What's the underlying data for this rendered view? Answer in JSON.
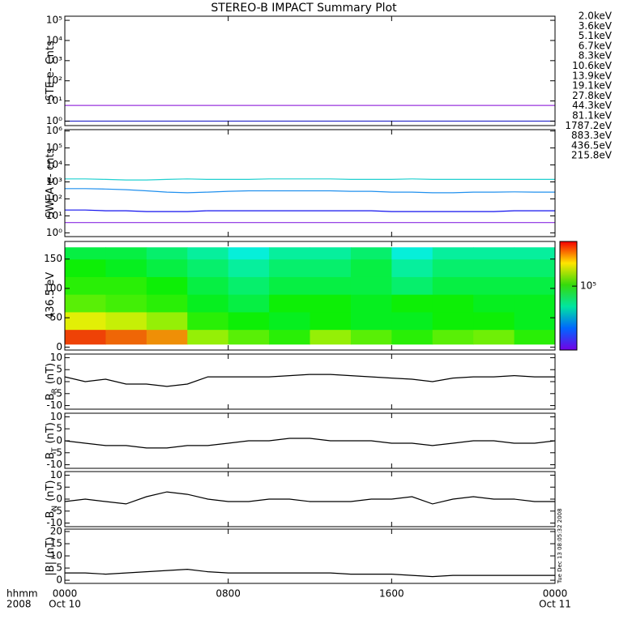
{
  "chart_data": [
    {
      "type": "line",
      "title": "STEREO-B IMPACT Summary Plot",
      "ylabel": [
        "STE e- Cnts"
      ],
      "log_y": true,
      "legend": true,
      "xlim": [
        0,
        24
      ],
      "ylim": [
        0.6,
        160000
      ],
      "yticks": [
        {
          "value": 1,
          "label": "10⁰"
        },
        {
          "value": 10,
          "label": "10¹"
        },
        {
          "value": 100,
          "label": "10²"
        },
        {
          "value": 1000,
          "label": "10³"
        },
        {
          "value": 10000,
          "label": "10⁴"
        },
        {
          "value": 100000,
          "label": "10⁵"
        }
      ],
      "x": [
        0,
        1,
        2,
        3,
        4,
        5,
        6,
        7,
        8,
        9,
        10,
        11,
        12,
        13,
        14,
        15,
        16,
        17,
        18,
        19,
        20,
        21,
        22,
        23,
        24
      ],
      "series": [
        {
          "name": "2.0keV",
          "color": "#9933dd",
          "values": [
            6,
            6,
            6,
            6,
            6,
            6,
            6,
            6,
            6,
            6,
            6,
            6,
            6,
            6,
            6,
            6,
            6,
            6,
            6,
            6,
            6,
            6,
            6,
            6,
            6
          ]
        },
        {
          "name": "3.6keV",
          "color": "#3333cc",
          "values": [
            1,
            1,
            1,
            1,
            1,
            1,
            1,
            1,
            1,
            1,
            1,
            1,
            1,
            1,
            1,
            1,
            1,
            1,
            1,
            1,
            1,
            1,
            1,
            1,
            1
          ]
        },
        {
          "name": "5.1keV",
          "color": "#2255ee",
          "values": [
            null,
            null,
            null,
            null,
            null,
            null,
            null,
            null,
            null,
            null,
            null,
            null,
            null,
            null,
            null,
            null,
            null,
            null,
            null,
            null,
            null,
            null,
            null,
            null,
            null
          ]
        },
        {
          "name": "6.7keV",
          "color": "#2a9fd8",
          "values": [
            null,
            null,
            null,
            null,
            null,
            null,
            null,
            null,
            null,
            null,
            null,
            null,
            null,
            null,
            null,
            null,
            null,
            null,
            null,
            null,
            null,
            null,
            null,
            null,
            null
          ]
        },
        {
          "name": "8.3keV",
          "color": "#22c8c8",
          "values": [
            null,
            null,
            null,
            null,
            null,
            null,
            null,
            null,
            null,
            null,
            null,
            null,
            null,
            null,
            null,
            null,
            null,
            null,
            null,
            null,
            null,
            null,
            null,
            null,
            null
          ]
        },
        {
          "name": "10.6keV",
          "color": "#22cc77",
          "values": [
            null,
            null,
            null,
            null,
            null,
            null,
            null,
            null,
            null,
            null,
            null,
            null,
            null,
            null,
            null,
            null,
            null,
            null,
            null,
            null,
            null,
            null,
            null,
            null,
            null
          ]
        },
        {
          "name": "13.9keV",
          "color": "#33cc11",
          "values": [
            null,
            null,
            null,
            null,
            null,
            null,
            null,
            null,
            null,
            null,
            null,
            null,
            null,
            null,
            null,
            null,
            null,
            null,
            null,
            null,
            null,
            null,
            null,
            null,
            null
          ]
        },
        {
          "name": "19.1keV",
          "color": "#aacc11",
          "values": [
            null,
            null,
            null,
            null,
            null,
            null,
            null,
            null,
            null,
            null,
            null,
            null,
            null,
            null,
            null,
            null,
            null,
            null,
            null,
            null,
            null,
            null,
            null,
            null,
            null
          ]
        },
        {
          "name": "27.8keV",
          "color": "#ffcc00",
          "values": [
            null,
            null,
            null,
            null,
            null,
            null,
            null,
            null,
            null,
            null,
            null,
            null,
            null,
            null,
            null,
            null,
            null,
            null,
            null,
            null,
            null,
            null,
            null,
            null,
            null
          ]
        },
        {
          "name": "44.3keV",
          "color": "#ff8800",
          "values": [
            null,
            null,
            null,
            null,
            null,
            null,
            null,
            null,
            null,
            null,
            null,
            null,
            null,
            null,
            null,
            null,
            null,
            null,
            null,
            null,
            null,
            null,
            null,
            null,
            null
          ]
        },
        {
          "name": "81.1keV",
          "color": "#dd2200",
          "values": [
            null,
            null,
            null,
            null,
            null,
            null,
            null,
            null,
            null,
            null,
            null,
            null,
            null,
            null,
            null,
            null,
            null,
            null,
            null,
            null,
            null,
            null,
            null,
            null,
            null
          ]
        }
      ]
    },
    {
      "type": "line",
      "ylabel": [
        "SWEA e- cnts"
      ],
      "log_y": true,
      "legend": true,
      "xlim": [
        0,
        24
      ],
      "ylim": [
        0.6,
        1200000
      ],
      "yticks": [
        {
          "value": 1,
          "label": "10⁰"
        },
        {
          "value": 10,
          "label": "10¹"
        },
        {
          "value": 100,
          "label": "10²"
        },
        {
          "value": 1000,
          "label": "10³"
        },
        {
          "value": 10000,
          "label": "10⁴"
        },
        {
          "value": 100000,
          "label": "10⁵"
        },
        {
          "value": 1000000,
          "label": "10⁶"
        }
      ],
      "x": [
        0,
        1,
        2,
        3,
        4,
        5,
        6,
        7,
        8,
        9,
        10,
        11,
        12,
        13,
        14,
        15,
        16,
        17,
        18,
        19,
        20,
        21,
        22,
        23,
        24
      ],
      "series": [
        {
          "name": "1787.2eV",
          "color": "#8a2be2",
          "values": [
            4,
            4,
            4,
            4,
            4,
            4,
            4,
            4,
            4,
            4,
            4,
            4,
            4,
            4,
            4,
            4,
            4,
            4,
            4,
            4,
            4,
            4,
            4,
            4,
            4
          ]
        },
        {
          "name": "883.3eV",
          "color": "#1010ee",
          "values": [
            22,
            22,
            20,
            20,
            18,
            18,
            18,
            20,
            20,
            20,
            20,
            20,
            20,
            20,
            20,
            20,
            18,
            18,
            18,
            18,
            18,
            18,
            20,
            20,
            20
          ]
        },
        {
          "name": "436.5eV",
          "color": "#2090ee",
          "values": [
            400,
            400,
            380,
            350,
            300,
            250,
            230,
            250,
            280,
            300,
            300,
            300,
            300,
            300,
            280,
            280,
            250,
            250,
            230,
            230,
            250,
            250,
            260,
            250,
            250
          ]
        },
        {
          "name": "215.8eV",
          "color": "#20d0d0",
          "values": [
            1500,
            1500,
            1400,
            1300,
            1300,
            1400,
            1500,
            1400,
            1400,
            1400,
            1500,
            1500,
            1500,
            1500,
            1400,
            1400,
            1400,
            1500,
            1400,
            1400,
            1400,
            1400,
            1400,
            1400,
            1400
          ]
        }
      ]
    },
    {
      "type": "heatmap",
      "ylabel": [
        "436.5 eV"
      ],
      "xlim": [
        0,
        24
      ],
      "ylim": [
        -5,
        180
      ],
      "yticks": [
        0,
        50,
        100,
        150
      ],
      "xbins": [
        0,
        2,
        4,
        6,
        8,
        10,
        12,
        14,
        16,
        18,
        20,
        22,
        24
      ],
      "ybins": [
        5,
        30,
        60,
        90,
        120,
        150,
        170
      ],
      "zlim": [
        10000,
        500000
      ],
      "zticks": [
        {
          "value": 100000,
          "label": "10⁵"
        }
      ],
      "values": [
        [
          400000,
          350000,
          300000,
          150000,
          120000,
          100000,
          150000,
          120000,
          100000,
          120000,
          130000,
          100000
        ],
        [
          200000,
          180000,
          150000,
          100000,
          90000,
          80000,
          90000,
          80000,
          80000,
          90000,
          90000,
          80000
        ],
        [
          120000,
          110000,
          100000,
          80000,
          70000,
          90000,
          90000,
          80000,
          90000,
          90000,
          80000,
          80000
        ],
        [
          100000,
          100000,
          90000,
          70000,
          60000,
          70000,
          70000,
          70000,
          60000,
          70000,
          70000,
          70000
        ],
        [
          90000,
          80000,
          70000,
          60000,
          50000,
          60000,
          60000,
          70000,
          50000,
          60000,
          60000,
          60000
        ],
        [
          70000,
          70000,
          60000,
          50000,
          40000,
          50000,
          50000,
          60000,
          40000,
          50000,
          50000,
          50000
        ]
      ]
    },
    {
      "type": "line",
      "ylabel": [
        "B",
        "R",
        "(nT)"
      ],
      "xlim": [
        0,
        24
      ],
      "ylim": [
        -11.5,
        11.5
      ],
      "yticks": [
        -10,
        -5,
        0,
        5,
        10
      ],
      "x": [
        0,
        1,
        2,
        3,
        4,
        5,
        6,
        7,
        8,
        9,
        10,
        11,
        12,
        13,
        14,
        15,
        16,
        17,
        18,
        19,
        20,
        21,
        22,
        23,
        24
      ],
      "series": [
        {
          "color": "#000000",
          "values": [
            2,
            0,
            1,
            -1,
            -1,
            -2,
            -1,
            2,
            2,
            2,
            2,
            2.5,
            3,
            3,
            2.5,
            2,
            1.5,
            1,
            0,
            1.5,
            2,
            2,
            2.5,
            2,
            2
          ]
        }
      ]
    },
    {
      "type": "line",
      "ylabel": [
        "B",
        "T",
        "(nT)"
      ],
      "xlim": [
        0,
        24
      ],
      "ylim": [
        -11.5,
        11.5
      ],
      "yticks": [
        -10,
        -5,
        0,
        5,
        10
      ],
      "x": [
        0,
        1,
        2,
        3,
        4,
        5,
        6,
        7,
        8,
        9,
        10,
        11,
        12,
        13,
        14,
        15,
        16,
        17,
        18,
        19,
        20,
        21,
        22,
        23,
        24
      ],
      "series": [
        {
          "color": "#000000",
          "values": [
            0,
            -1,
            -2,
            -2,
            -3,
            -3,
            -2,
            -2,
            -1,
            0,
            0,
            1,
            1,
            0,
            0,
            0,
            -1,
            -1,
            -2,
            -1,
            0,
            0,
            -1,
            -1,
            0
          ]
        }
      ]
    },
    {
      "type": "line",
      "ylabel": [
        "B",
        "N",
        "(nT)"
      ],
      "xlim": [
        0,
        24
      ],
      "ylim": [
        -11.5,
        11.5
      ],
      "yticks": [
        -10,
        -5,
        0,
        5,
        10
      ],
      "x": [
        0,
        1,
        2,
        3,
        4,
        5,
        6,
        7,
        8,
        9,
        10,
        11,
        12,
        13,
        14,
        15,
        16,
        17,
        18,
        19,
        20,
        21,
        22,
        23,
        24
      ],
      "series": [
        {
          "color": "#000000",
          "values": [
            -1,
            0,
            -1,
            -2,
            1,
            3,
            2,
            0,
            -1,
            -1,
            0,
            0,
            -1,
            -1,
            -1,
            0,
            0,
            1,
            -2,
            0,
            1,
            0,
            0,
            -1,
            -1
          ]
        }
      ]
    },
    {
      "type": "line",
      "ylabel": [
        "|B| (nT)"
      ],
      "xlim": [
        0,
        24
      ],
      "ylim": [
        -1.3,
        21
      ],
      "yticks": [
        0,
        5,
        10,
        15,
        20
      ],
      "x": [
        0,
        1,
        2,
        3,
        4,
        5,
        6,
        7,
        8,
        9,
        10,
        11,
        12,
        13,
        14,
        15,
        16,
        17,
        18,
        19,
        20,
        21,
        22,
        23,
        24
      ],
      "series": [
        {
          "color": "#000000",
          "values": [
            3,
            3,
            2.5,
            3,
            3.5,
            4,
            4.5,
            3.5,
            3,
            3,
            3,
            3,
            3,
            3,
            2.5,
            2.5,
            2.5,
            2,
            1.5,
            2,
            2,
            2,
            2,
            2,
            2
          ]
        }
      ],
      "xticks": [
        {
          "value": 0,
          "label": "0000"
        },
        {
          "value": 8,
          "label": "0800"
        },
        {
          "value": 16,
          "label": "1600"
        },
        {
          "value": 24,
          "label": "0000"
        }
      ],
      "xtick_dates": [
        {
          "value": 0,
          "label": "Oct 10"
        },
        {
          "value": 24,
          "label": "Oct 11"
        }
      ],
      "xunit_labels": [
        "hhmm",
        "2008"
      ],
      "annotation": "Tue Dec 13 08:05:32 2008"
    }
  ]
}
